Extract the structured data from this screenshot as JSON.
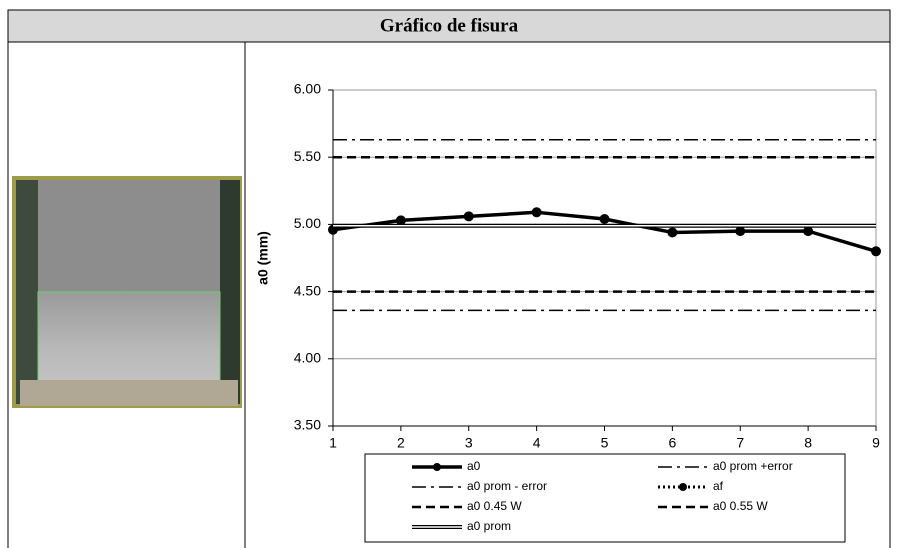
{
  "chart_data": {
    "type": "line",
    "title": "Gráfico de fisura",
    "y_label": "a0 (mm)",
    "x": [
      1,
      2,
      3,
      4,
      5,
      6,
      7,
      8,
      9
    ],
    "xlim": [
      1,
      9
    ],
    "xticks": [
      1,
      2,
      3,
      4,
      5,
      6,
      7,
      8,
      9
    ],
    "ylim": [
      3.5,
      6
    ],
    "yticks": [
      {
        "value": 3.5,
        "label": "3.50"
      },
      {
        "value": 4,
        "label": "4.00"
      },
      {
        "value": 4.5,
        "label": "4.50"
      },
      {
        "value": 5,
        "label": "5.00"
      },
      {
        "value": 5.5,
        "label": "5.50"
      },
      {
        "value": 6,
        "label": "6.00"
      }
    ],
    "grid": true,
    "series": [
      {
        "name": "a0",
        "color": "#000000",
        "style": "marker",
        "values": [
          4.96,
          5.03,
          5.06,
          5.09,
          5.04,
          4.94,
          4.95,
          4.95,
          4.8
        ]
      },
      {
        "name": "a0 prom +error",
        "color": "#000000",
        "style": "dashdot",
        "values": [
          5.63,
          5.63,
          5.63,
          5.63,
          5.63,
          5.63,
          5.63,
          5.63,
          5.63
        ]
      },
      {
        "name": "a0 prom - error",
        "color": "#000000",
        "style": "dashdot",
        "values": [
          4.36,
          4.36,
          4.36,
          4.36,
          4.36,
          4.36,
          4.36,
          4.36,
          4.36
        ]
      },
      {
        "name": "af",
        "color": "#000000",
        "style": "dotted",
        "values": [
          null,
          null,
          null,
          null,
          null,
          null,
          null,
          null,
          null
        ]
      },
      {
        "name": "a0 0.45 W",
        "color": "#000000",
        "style": "dash",
        "values": [
          4.5,
          4.5,
          4.5,
          4.5,
          4.5,
          4.5,
          4.5,
          4.5,
          4.5
        ]
      },
      {
        "name": "a0 0.55 W",
        "color": "#000000",
        "style": "dash",
        "values": [
          5.5,
          5.5,
          5.5,
          5.5,
          5.5,
          5.5,
          5.5,
          5.5,
          5.5
        ]
      },
      {
        "name": "a0 prom",
        "color": "#000000",
        "style": "double",
        "values": [
          4.99,
          4.99,
          4.99,
          4.99,
          4.99,
          4.99,
          4.99,
          4.99,
          4.99
        ]
      }
    ]
  }
}
